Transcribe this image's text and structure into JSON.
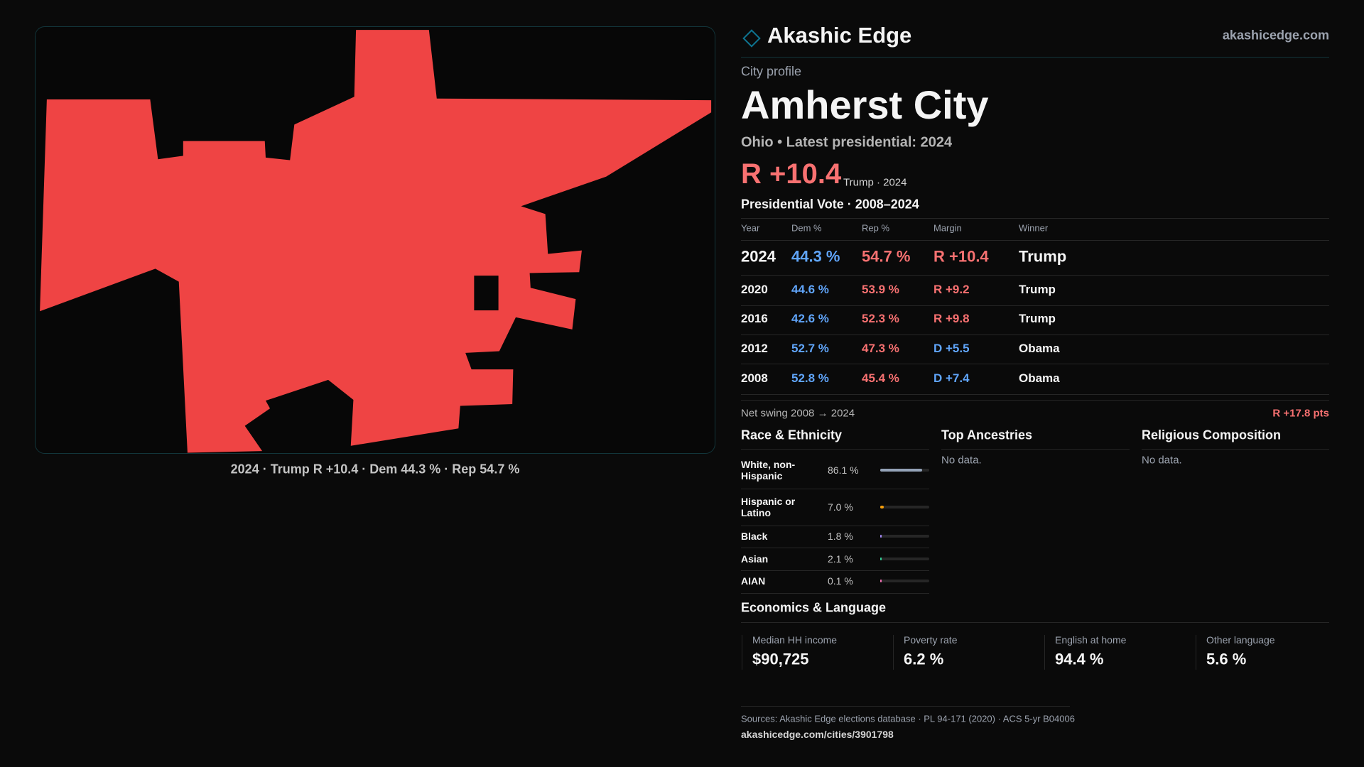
{
  "header": {
    "brand": "Akashic Edge",
    "site": "akashicedge.com"
  },
  "profile": {
    "kicker": "City profile",
    "name": "Amherst City",
    "subtitle": "Ohio • Latest presidential: 2024",
    "margin": "R +10.4",
    "margin_note": "Trump · 2024"
  },
  "map": {
    "caption": "2024 · Trump R +10.4 · Dem 44.3 % · Rep 54.7 %"
  },
  "vote_table": {
    "title": "Presidential Vote · 2008–2024",
    "columns": [
      "Year",
      "Dem %",
      "Rep %",
      "Margin",
      "Winner"
    ],
    "rows": [
      [
        "2024",
        "44.3 %",
        "54.7 %",
        "R +10.4",
        "Trump"
      ],
      [
        "2020",
        "44.6 %",
        "53.9 %",
        "R +9.2",
        "Trump"
      ],
      [
        "2016",
        "42.6 %",
        "52.3 %",
        "R +9.8",
        "Trump"
      ],
      [
        "2012",
        "52.7 %",
        "47.3 %",
        "D +5.5",
        "Obama"
      ],
      [
        "2008",
        "52.8 %",
        "45.4 %",
        "D +7.4",
        "Obama"
      ]
    ]
  },
  "net_swing": {
    "label": "Net swing 2008 → 2024",
    "value": "R +17.8 pts"
  },
  "race": {
    "title": "Race & Ethnicity",
    "rows": [
      {
        "label": "White, non-Hispanic",
        "pct": 86.1,
        "pct_label": "86.1 %",
        "color": "#94a3b8"
      },
      {
        "label": "Hispanic or Latino",
        "pct": 7.0,
        "pct_label": "7.0 %",
        "color": "#f59e0b"
      },
      {
        "label": "Black",
        "pct": 1.8,
        "pct_label": "1.8 %",
        "color": "#a78bfa"
      },
      {
        "label": "Asian",
        "pct": 2.1,
        "pct_label": "2.1 %",
        "color": "#34d399"
      },
      {
        "label": "AIAN",
        "pct": 0.1,
        "pct_label": "0.1 %",
        "color": "#f472b6"
      }
    ]
  },
  "ancestries": {
    "title": "Top Ancestries",
    "empty": "No data."
  },
  "religion": {
    "title": "Religious Composition",
    "empty": "No data."
  },
  "economics": {
    "title": "Economics & Language",
    "cards": [
      {
        "label": "Median HH income",
        "value": "$90,725"
      },
      {
        "label": "Poverty rate",
        "value": "6.2 %"
      },
      {
        "label": "English at home",
        "value": "94.4 %"
      },
      {
        "label": "Other language",
        "value": "5.6 %"
      }
    ]
  },
  "footer": {
    "sources": "Sources: Akashic Edge elections database · PL 94-171 (2020) · ACS 5-yr B04006",
    "url": "akashicedge.com/cities/3901798"
  }
}
